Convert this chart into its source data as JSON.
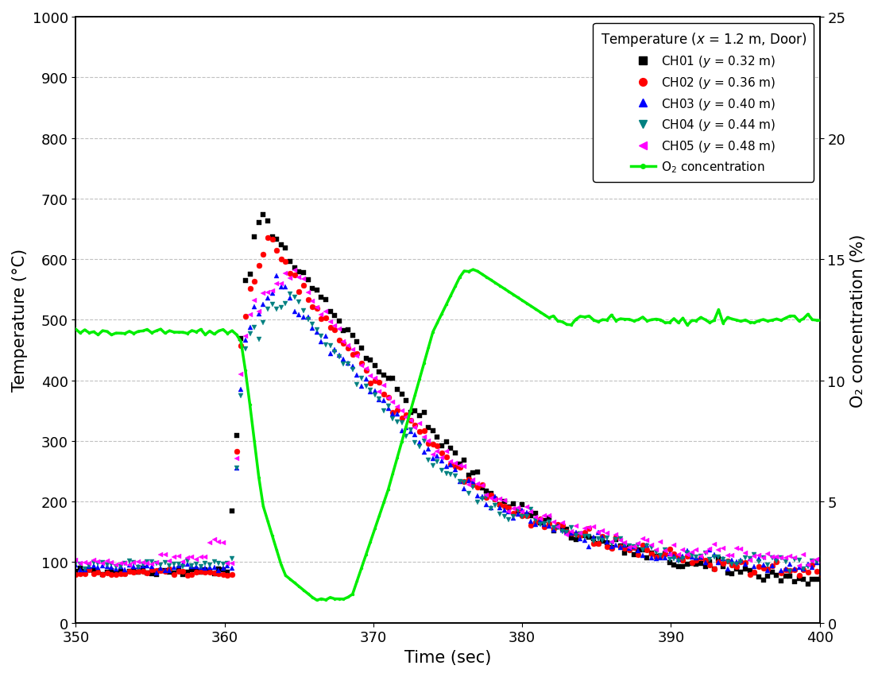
{
  "title": "Temperature (x = 1.2 m, Door)",
  "xlabel": "Time (sec)",
  "ylabel_left": "Temperature (°C)",
  "ylabel_right": "O₂ concentration (%)",
  "xlim": [
    350,
    400
  ],
  "ylim_left": [
    0,
    1000
  ],
  "ylim_right": [
    0,
    25
  ],
  "channels": [
    {
      "name": "CH01",
      "y_val": "0.32",
      "color": "#000000",
      "marker": "s"
    },
    {
      "name": "CH02",
      "y_val": "0.36",
      "color": "#ff0000",
      "marker": "o"
    },
    {
      "name": "CH03",
      "y_val": "0.40",
      "color": "#0000ff",
      "marker": "^"
    },
    {
      "name": "CH04",
      "y_val": "0.44",
      "color": "#008080",
      "marker": "v"
    },
    {
      "name": "CH05",
      "y_val": "0.48",
      "color": "#ff00ff",
      "marker": "<"
    }
  ],
  "o2_color": "#00ee00",
  "background_color": "#ffffff",
  "grid_color": "#bbbbbb",
  "tick_label_fontsize": 13,
  "axis_label_fontsize": 15,
  "legend_fontsize": 11,
  "marker_size": 5
}
